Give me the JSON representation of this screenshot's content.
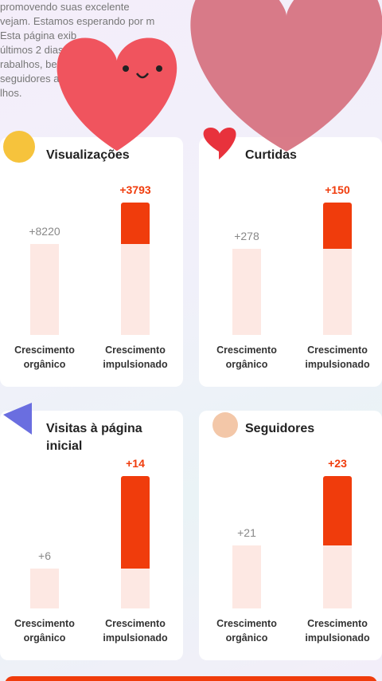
{
  "intro_lines": [
    "promovendo suas excelente",
    "vejam. Estamos esperando por m",
    "Esta página exib",
    "últimos 2 dias,",
    "rabalhos, bem",
    "seguidores atraí",
    "lhos."
  ],
  "cards": [
    {
      "title": "Visualizações",
      "organic": {
        "label": "Crescimento orgânico",
        "value": 8220,
        "value_label": "+8220"
      },
      "boosted": {
        "label": "Crescimento impulsionado",
        "value": 3793,
        "value_label": "+3793"
      }
    },
    {
      "title": "Curtidas",
      "organic": {
        "label": "Crescimento orgânico",
        "value": 278,
        "value_label": "+278"
      },
      "boosted": {
        "label": "Crescimento impulsionado",
        "value": 150,
        "value_label": "+150"
      }
    },
    {
      "title": "Visitas à página inicial",
      "organic": {
        "label": "Crescimento orgânico",
        "value": 6,
        "value_label": "+6"
      },
      "boosted": {
        "label": "Crescimento impulsionado",
        "value": 14,
        "value_label": "+14"
      }
    },
    {
      "title": "Seguidores",
      "organic": {
        "label": "Crescimento orgânico",
        "value": 21,
        "value_label": "+21"
      },
      "boosted": {
        "label": "Crescimento impulsionado",
        "value": 23,
        "value_label": "+23"
      }
    }
  ]
}
